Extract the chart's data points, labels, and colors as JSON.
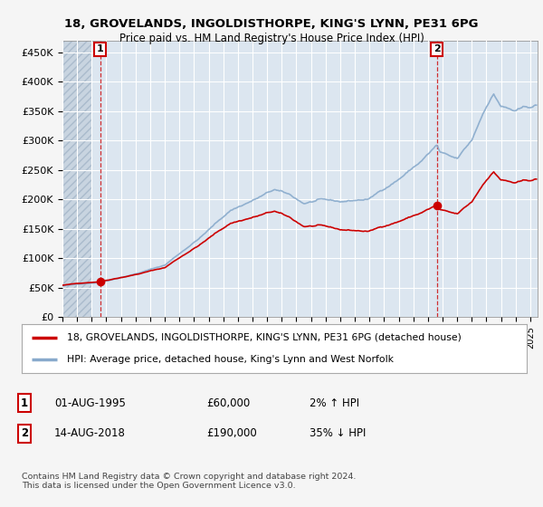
{
  "title1": "18, GROVELANDS, INGOLDISTHORPE, KING'S LYNN, PE31 6PG",
  "title2": "Price paid vs. HM Land Registry's House Price Index (HPI)",
  "ylim": [
    0,
    470000
  ],
  "yticks": [
    0,
    50000,
    100000,
    150000,
    200000,
    250000,
    300000,
    350000,
    400000,
    450000
  ],
  "ytick_labels": [
    "£0",
    "£50K",
    "£100K",
    "£150K",
    "£200K",
    "£250K",
    "£300K",
    "£350K",
    "£400K",
    "£450K"
  ],
  "sale1_year": 1995.583,
  "sale1_price": 60000,
  "sale2_year": 2018.617,
  "sale2_price": 190000,
  "line_color_sale": "#cc0000",
  "line_color_hpi": "#88aacc",
  "legend_sale": "18, GROVELANDS, INGOLDISTHORPE, KING'S LYNN, PE31 6PG (detached house)",
  "legend_hpi": "HPI: Average price, detached house, King's Lynn and West Norfolk",
  "copyright_text": "Contains HM Land Registry data © Crown copyright and database right 2024.\nThis data is licensed under the Open Government Licence v3.0.",
  "bg_color": "#f5f5f5",
  "plot_bg": "#dce6f0",
  "hatch_end_year": 1995.0,
  "xlim_start": 1993.0,
  "xlim_end": 2025.5
}
